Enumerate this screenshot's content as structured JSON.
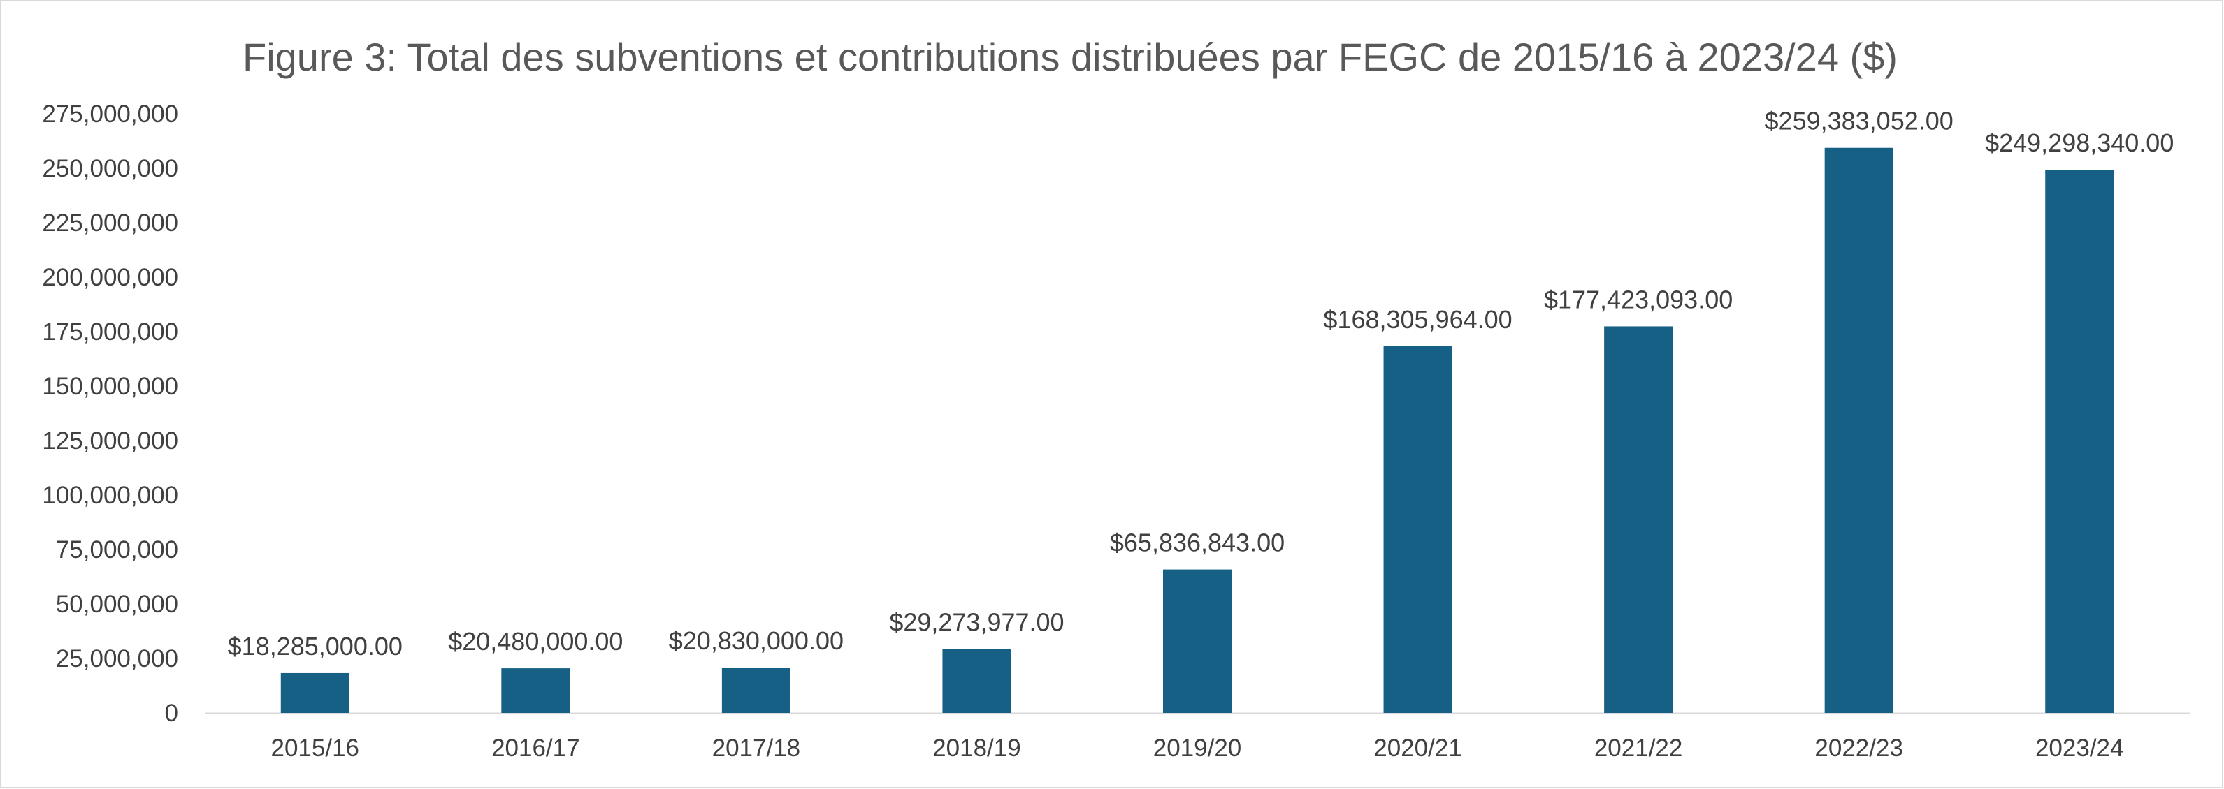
{
  "colors": {
    "bar": "#176085",
    "axis": "#d9d9d9",
    "text": "#404040",
    "title": "#595959"
  },
  "chart_data": {
    "type": "bar",
    "title": "Figure 3: Total des subventions et contributions distribuées par FEGC de 2015/16 à 2023/24 ($)",
    "xlabel": "",
    "ylabel": "",
    "grid": false,
    "legend": "none",
    "ylim": [
      0,
      275000000
    ],
    "yticks": [
      0,
      25000000,
      50000000,
      75000000,
      100000000,
      125000000,
      150000000,
      175000000,
      200000000,
      225000000,
      250000000,
      275000000
    ],
    "ytick_labels": [
      "0",
      "25,000,000",
      "50,000,000",
      "75,000,000",
      "100,000,000",
      "125,000,000",
      "150,000,000",
      "175,000,000",
      "200,000,000",
      "225,000,000",
      "250,000,000",
      "275,000,000"
    ],
    "categories": [
      "2015/16",
      "2016/17",
      "2017/18",
      "2018/19",
      "2019/20",
      "2020/21",
      "2021/22",
      "2022/23",
      "2023/24"
    ],
    "values": [
      18285000,
      20480000,
      20830000,
      29273977,
      65836843,
      168305964,
      177423093,
      259383052,
      249298340
    ],
    "data_labels": [
      "$18,285,000.00",
      "$20,480,000.00",
      "$20,830,000.00",
      "$29,273,977.00",
      "$65,836,843.00",
      "$168,305,964.00",
      "$177,423,093.00",
      "$259,383,052.00",
      "$249,298,340.00"
    ]
  }
}
